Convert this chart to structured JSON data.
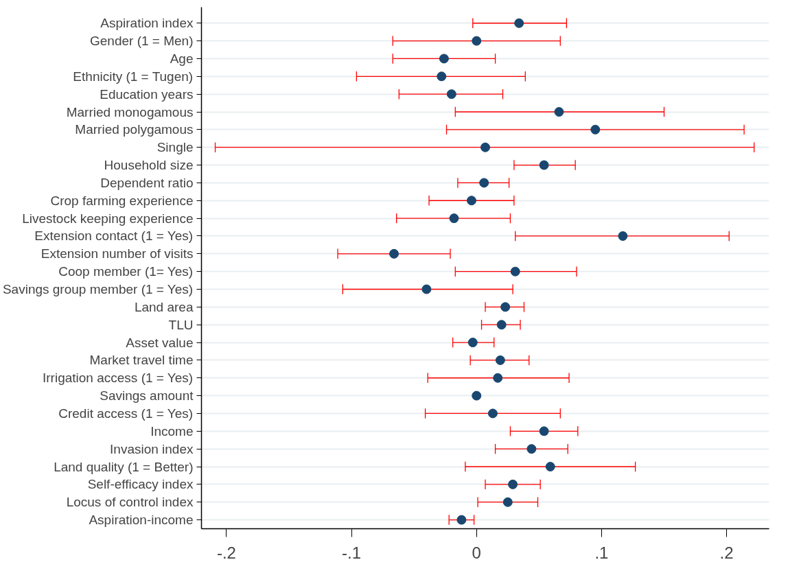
{
  "chart_data": {
    "type": "scatter",
    "orientation": "horizontal",
    "marker": "circle",
    "grid": "y",
    "categories": [
      "Aspiration index",
      "Gender (1 = Men)",
      "Age",
      "Ethnicity (1 = Tugen)",
      "Education years",
      "Married monogamous",
      "Married polygamous",
      "Single",
      "Household size",
      "Dependent ratio",
      "Crop farming experience",
      "Livestock keeping experience",
      "Extension contact (1 = Yes)",
      "Extension number of visits",
      "Coop member (1= Yes)",
      "Savings group member (1 = Yes)",
      "Land area",
      "TLU",
      "Asset value",
      "Market travel time",
      "Irrigation access (1 = Yes)",
      "Savings amount",
      "Credit access (1 = Yes)",
      "Income",
      "Invasion index",
      "Land quality (1 = Better)",
      "Self-efficacy index",
      "Locus of control index",
      "Aspiration-income"
    ],
    "series": [
      {
        "color": "#1a476f",
        "values": [
          0.034,
          0,
          -0.026,
          -0.028,
          -0.02,
          0.066,
          0.095,
          0.007,
          0.054,
          0.006,
          -0.004,
          -0.018,
          0.117,
          -0.066,
          0.031,
          -0.04,
          0.023,
          0.02,
          -0.003,
          0.019,
          0.017,
          0,
          0.013,
          0.054,
          0.044,
          0.059,
          0.029,
          0.025,
          -0.012
        ],
        "errors": [
          [
            -0.003,
            0.072
          ],
          [
            -0.067,
            0.067
          ],
          [
            -0.067,
            0.015
          ],
          [
            -0.096,
            0.039
          ],
          [
            -0.062,
            0.021
          ],
          [
            -0.017,
            0.15
          ],
          [
            -0.024,
            0.214
          ],
          [
            -0.209,
            0.222
          ],
          [
            0.03,
            0.079
          ],
          [
            -0.015,
            0.026
          ],
          [
            -0.038,
            0.03
          ],
          [
            -0.064,
            0.027
          ],
          [
            0.031,
            0.202
          ],
          [
            -0.111,
            -0.021
          ],
          [
            -0.017,
            0.08
          ],
          [
            -0.107,
            0.029
          ],
          [
            0.007,
            0.038
          ],
          [
            0.004,
            0.035
          ],
          [
            -0.019,
            0.014
          ],
          [
            -0.005,
            0.042
          ],
          [
            -0.039,
            0.074
          ],
          null,
          [
            -0.041,
            0.067
          ],
          [
            0.027,
            0.081
          ],
          [
            0.015,
            0.073
          ],
          [
            -0.009,
            0.127
          ],
          [
            0.007,
            0.051
          ],
          [
            0.001,
            0.049
          ],
          [
            -0.022,
            -0.002
          ]
        ]
      }
    ],
    "xlim": [
      -0.22,
      0.234
    ],
    "xticks": [
      {
        "value": -0.2,
        "label": "-.2"
      },
      {
        "value": -0.1,
        "label": "-.1"
      },
      0,
      {
        "value": 0.1,
        "label": ".1"
      },
      {
        "value": 0.2,
        "label": ".2"
      }
    ]
  }
}
